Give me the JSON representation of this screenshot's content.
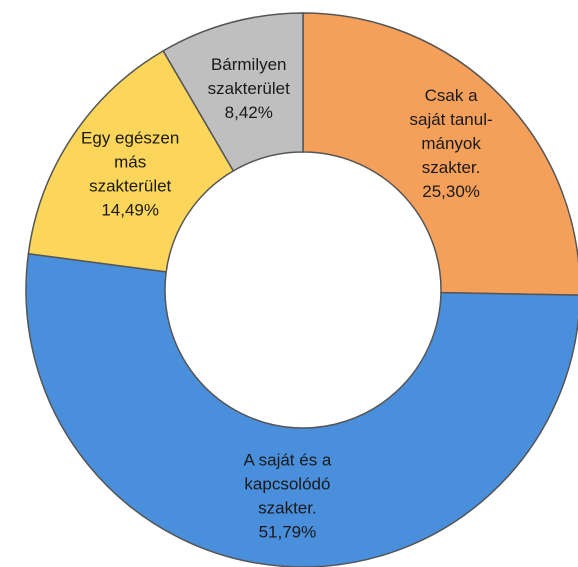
{
  "chart_data": {
    "type": "donut",
    "categories": [
      [
        "Csak a",
        "saját tanul-",
        "mányok",
        "szakter."
      ],
      [
        "A saját és a",
        "kapcsolódó",
        "szakter."
      ],
      [
        "Egy egészen",
        "más",
        "szakterület"
      ],
      [
        "Bármilyen",
        "szakterület"
      ]
    ],
    "values": [
      25.3,
      51.79,
      14.49,
      8.42
    ],
    "value_labels": [
      "25,30%",
      "51,79%",
      "14,49%",
      "8,42%"
    ],
    "colors": [
      "#f5a05a",
      "#4a8fdc",
      "#fbd65a",
      "#bfbfbf"
    ]
  }
}
